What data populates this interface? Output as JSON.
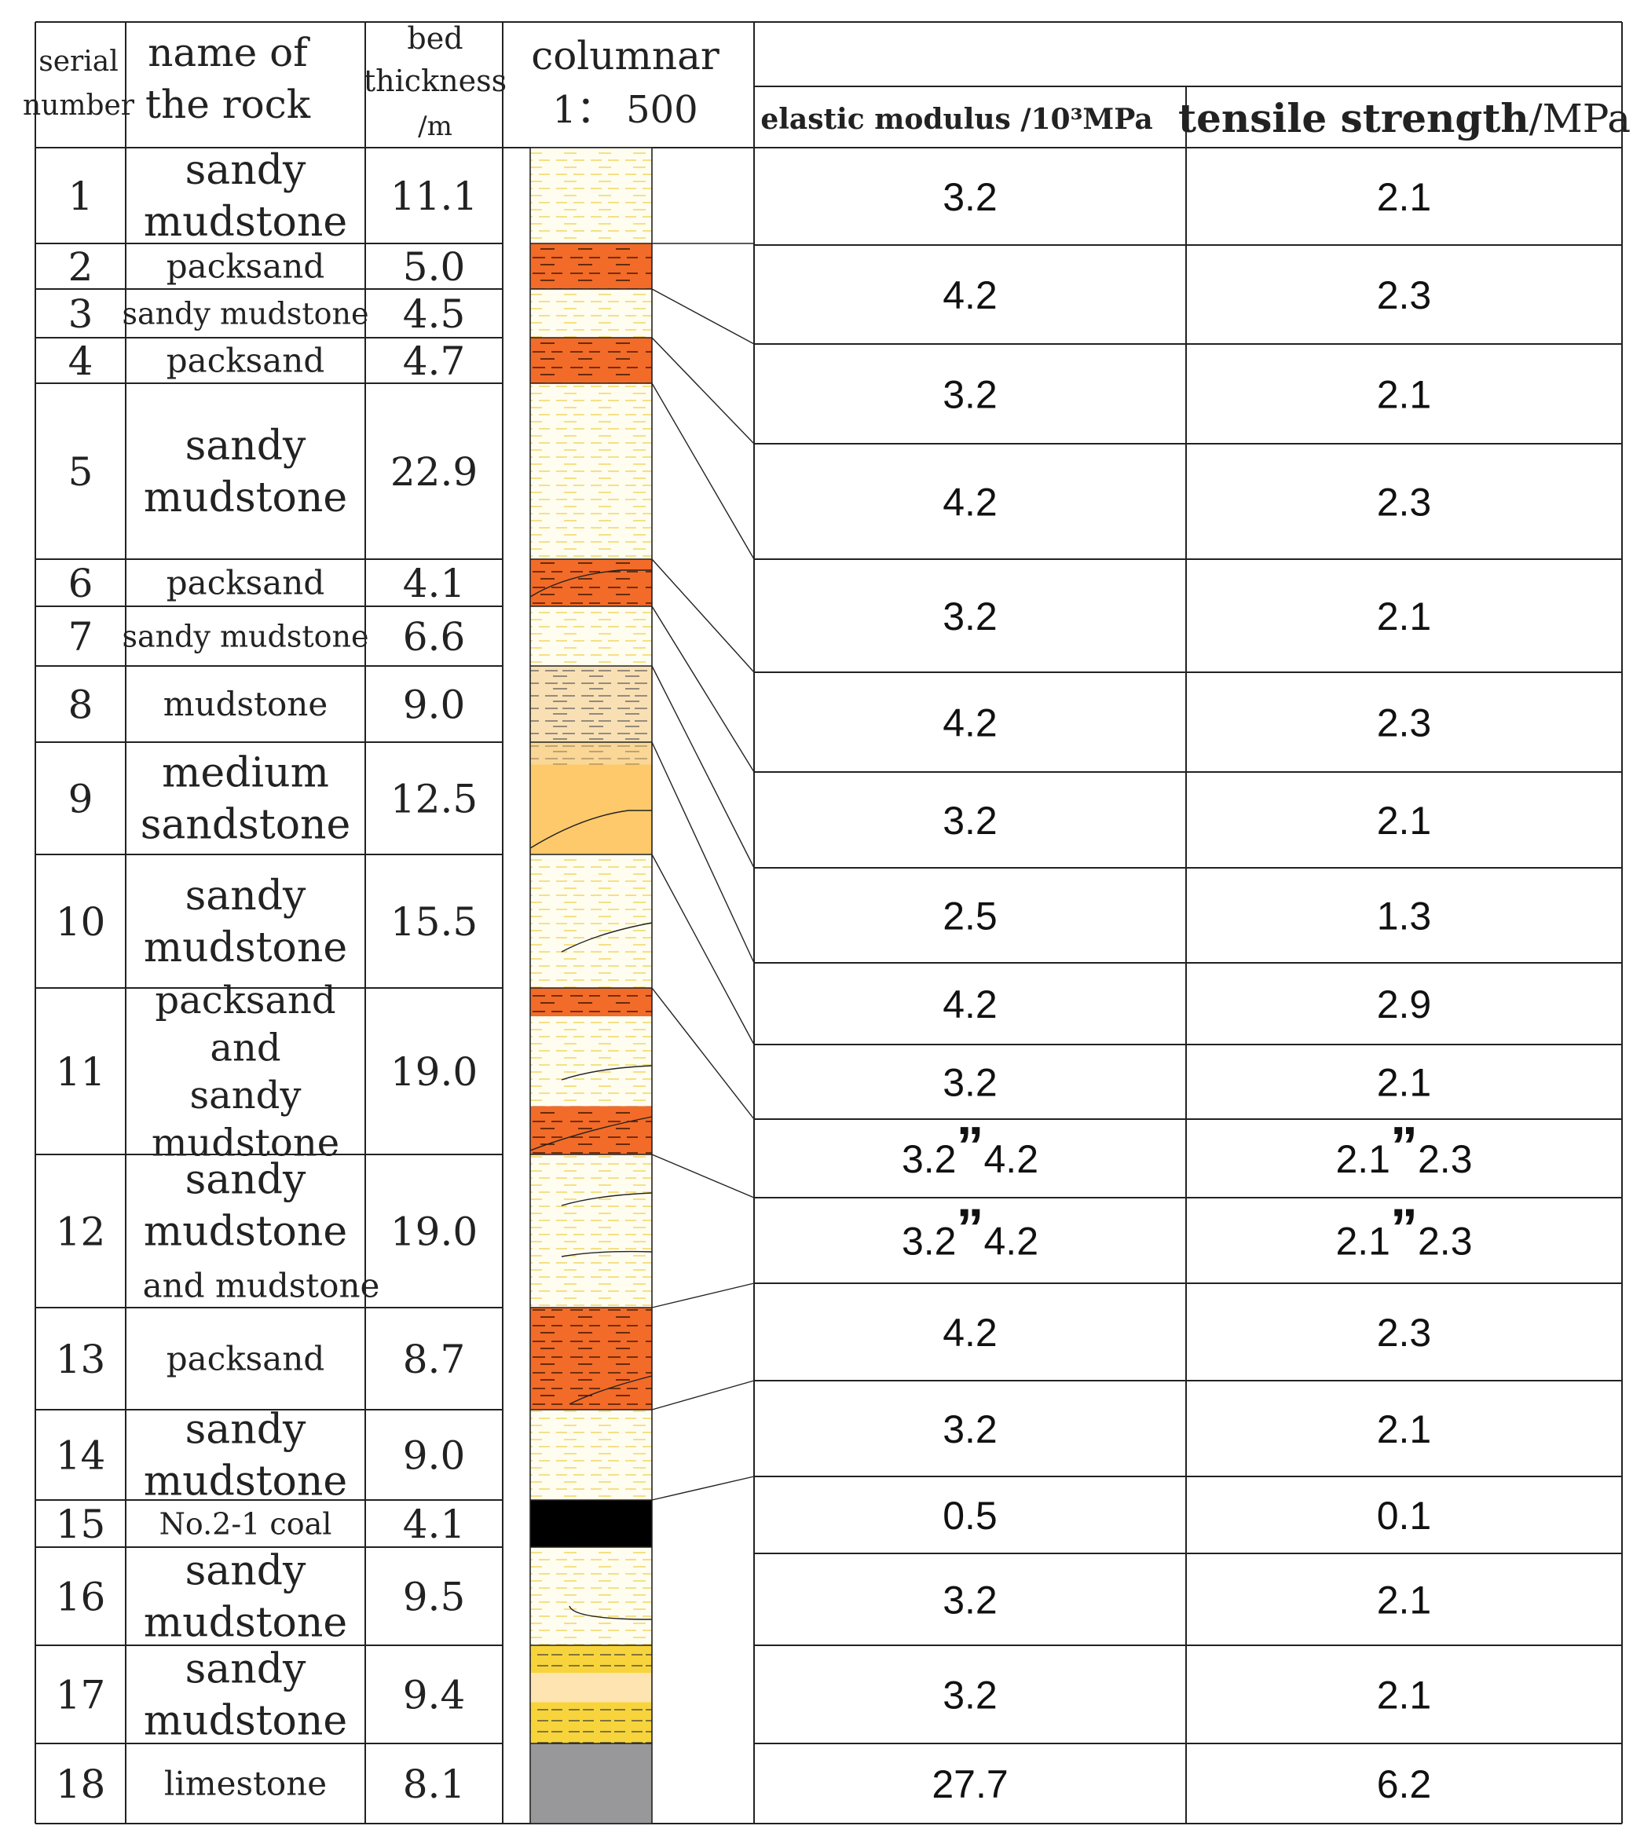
{
  "header": {
    "serial": [
      "serial",
      "number"
    ],
    "name": [
      "name of",
      "the rock"
    ],
    "thickness": [
      "bed",
      "thickness",
      "/m"
    ],
    "columnar": [
      "columnar",
      "1： 500"
    ],
    "elastic": "elastic modulus /10³MPa",
    "tensile_bold": "tensile strength",
    "tensile_unit": "/MPa"
  },
  "layers": [
    {
      "serial": "1",
      "name": [
        "sandy",
        "mudstone"
      ],
      "thickness": "11.1",
      "pattern": "sandy-mudstone"
    },
    {
      "serial": "2",
      "name": [
        "packsand"
      ],
      "thickness": "5.0",
      "pattern": "packsand"
    },
    {
      "serial": "3",
      "name": [
        "sandy mudstone"
      ],
      "thickness": "4.5",
      "pattern": "sandy-mudstone"
    },
    {
      "serial": "4",
      "name": [
        "packsand"
      ],
      "thickness": "4.7",
      "pattern": "packsand"
    },
    {
      "serial": "5",
      "name": [
        "sandy",
        "mudstone"
      ],
      "thickness": "22.9",
      "pattern": "sandy-mudstone"
    },
    {
      "serial": "6",
      "name": [
        "packsand"
      ],
      "thickness": "4.1",
      "pattern": "packsand"
    },
    {
      "serial": "7",
      "name": [
        "sandy mudstone"
      ],
      "thickness": "6.6",
      "pattern": "sandy-mudstone"
    },
    {
      "serial": "8",
      "name": [
        "mudstone"
      ],
      "thickness": "9.0",
      "pattern": "mudstone"
    },
    {
      "serial": "9",
      "name": [
        "medium",
        "sandstone"
      ],
      "thickness": "12.5",
      "pattern": "medium-sandstone"
    },
    {
      "serial": "10",
      "name": [
        "sandy",
        "mudstone"
      ],
      "thickness": "15.5",
      "pattern": "sandy-mudstone"
    },
    {
      "serial": "11",
      "name": [
        "packsand",
        "and",
        "sandy",
        "mudstone"
      ],
      "thickness": "19.0",
      "pattern": "packsand-and-sandy-mudstone"
    },
    {
      "serial": "12",
      "name": [
        "sandy",
        "mudstone",
        "and mudstone"
      ],
      "thickness": "19.0",
      "pattern": "sandy-mudstone"
    },
    {
      "serial": "13",
      "name": [
        "packsand"
      ],
      "thickness": "8.7",
      "pattern": "packsand"
    },
    {
      "serial": "14",
      "name": [
        "sandy",
        "mudstone"
      ],
      "thickness": "9.0",
      "pattern": "sandy-mudstone"
    },
    {
      "serial": "15",
      "name": [
        "No.2-1 coal"
      ],
      "thickness": "4.1",
      "pattern": "coal"
    },
    {
      "serial": "16",
      "name": [
        "sandy",
        "mudstone"
      ],
      "thickness": "9.5",
      "pattern": "sandy-mudstone"
    },
    {
      "serial": "17",
      "name": [
        "sandy",
        "mudstone"
      ],
      "thickness": "9.4",
      "pattern": "yellow-banded"
    },
    {
      "serial": "18",
      "name": [
        "limestone"
      ],
      "thickness": "8.1",
      "pattern": "limestone"
    }
  ],
  "properties": [
    {
      "elastic": "3.2",
      "tensile": "2.1"
    },
    {
      "elastic": "4.2",
      "tensile": "2.3"
    },
    {
      "elastic": "3.2",
      "tensile": "2.1"
    },
    {
      "elastic": "4.2",
      "tensile": "2.3"
    },
    {
      "elastic": "3.2",
      "tensile": "2.1"
    },
    {
      "elastic": "4.2",
      "tensile": "2.3"
    },
    {
      "elastic": "3.2",
      "tensile": "2.1"
    },
    {
      "elastic": "2.5",
      "tensile": "1.3"
    },
    {
      "elastic": "4.2",
      "tensile": "2.9"
    },
    {
      "elastic": "3.2",
      "tensile": "2.1"
    },
    {
      "elastic": [
        "3.2",
        "”",
        "4.2"
      ],
      "tensile": [
        "2.1",
        "”",
        "2.3"
      ]
    },
    {
      "elastic": [
        "3.2",
        "”",
        "4.2"
      ],
      "tensile": [
        "2.1",
        "”",
        "2.3"
      ]
    },
    {
      "elastic": "4.2",
      "tensile": "2.3"
    },
    {
      "elastic": "3.2",
      "tensile": "2.1"
    },
    {
      "elastic": "0.5",
      "tensile": "0.1"
    },
    {
      "elastic": "3.2",
      "tensile": "2.1"
    },
    {
      "elastic": "3.2",
      "tensile": "2.1"
    },
    {
      "elastic": "27.7",
      "tensile": "6.2"
    }
  ],
  "colors": {
    "line": "#222222",
    "sandy_mudstone_fill": "#fffdf0",
    "sandy_mudstone_dash": "#f2d96b",
    "packsand": "#f26b28",
    "mudstone": "#f8e0b4",
    "medium_sandstone": "#fdc96a",
    "coal": "#000000",
    "yellow_band": "#f7d43c",
    "limestone": "#98989a"
  }
}
